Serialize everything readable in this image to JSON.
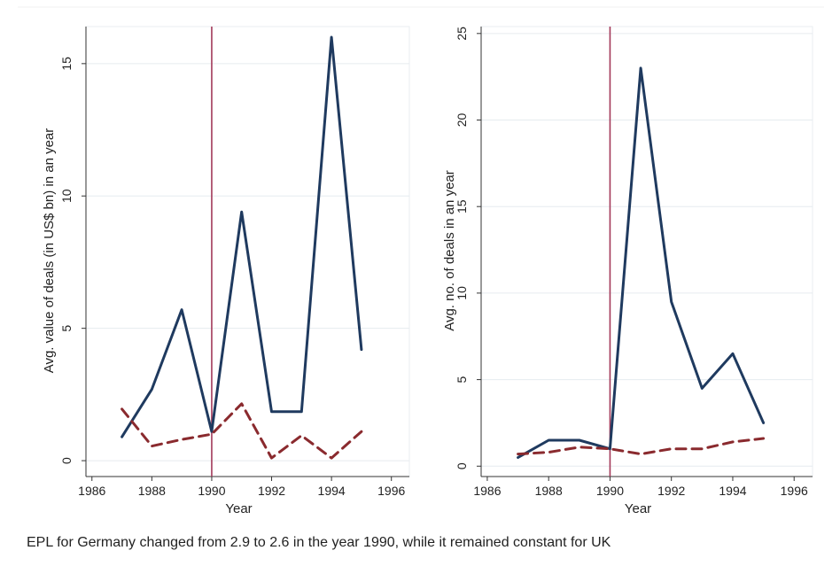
{
  "footnote": "EPL for Germany changed from 2.9 to 2.6 in the year 1990, while it remained constant for UK",
  "colors": {
    "series_solid": "#1f3a5f",
    "series_dashed": "#8a2a2e",
    "event_line": "#a33a5a"
  },
  "chart_data": [
    {
      "type": "line",
      "xlabel": "Year",
      "ylabel": "Avg. value of deals (in US$ bn) in an year",
      "xlim": [
        1985.8,
        1996.6
      ],
      "ylim": [
        -0.6,
        16.4
      ],
      "xticks": [
        1986,
        1988,
        1990,
        1992,
        1994,
        1996
      ],
      "yticks": [
        0,
        5,
        10,
        15
      ],
      "grid": true,
      "legend": "none",
      "vline_x": 1990,
      "series": [
        {
          "style": "solid",
          "x": [
            1987,
            1988,
            1989,
            1990,
            1991,
            1992,
            1993,
            1994,
            1995
          ],
          "y": [
            0.9,
            2.7,
            5.7,
            1.1,
            9.4,
            1.85,
            1.85,
            16.0,
            4.2
          ]
        },
        {
          "style": "dashed",
          "x": [
            1987,
            1988,
            1989,
            1990,
            1991,
            1992,
            1993,
            1994,
            1995
          ],
          "y": [
            1.95,
            0.55,
            0.8,
            1.0,
            2.15,
            0.1,
            0.95,
            0.1,
            1.1
          ]
        }
      ]
    },
    {
      "type": "line",
      "xlabel": "Year",
      "ylabel": "Avg. no. of deals in an year",
      "xlim": [
        1985.8,
        1996.6
      ],
      "ylim": [
        -0.6,
        25.4
      ],
      "xticks": [
        1986,
        1988,
        1990,
        1992,
        1994,
        1996
      ],
      "yticks": [
        0,
        5,
        10,
        15,
        20,
        25
      ],
      "grid": true,
      "legend": "none",
      "vline_x": 1990,
      "series": [
        {
          "style": "solid",
          "x": [
            1987,
            1988,
            1989,
            1990,
            1991,
            1992,
            1993,
            1994,
            1995
          ],
          "y": [
            0.5,
            1.5,
            1.5,
            1.0,
            23.0,
            9.5,
            4.5,
            6.5,
            2.5
          ]
        },
        {
          "style": "dashed",
          "x": [
            1987,
            1988,
            1989,
            1990,
            1991,
            1992,
            1993,
            1994,
            1995
          ],
          "y": [
            0.7,
            0.8,
            1.1,
            1.0,
            0.7,
            1.0,
            1.0,
            1.4,
            1.6
          ]
        }
      ]
    }
  ]
}
